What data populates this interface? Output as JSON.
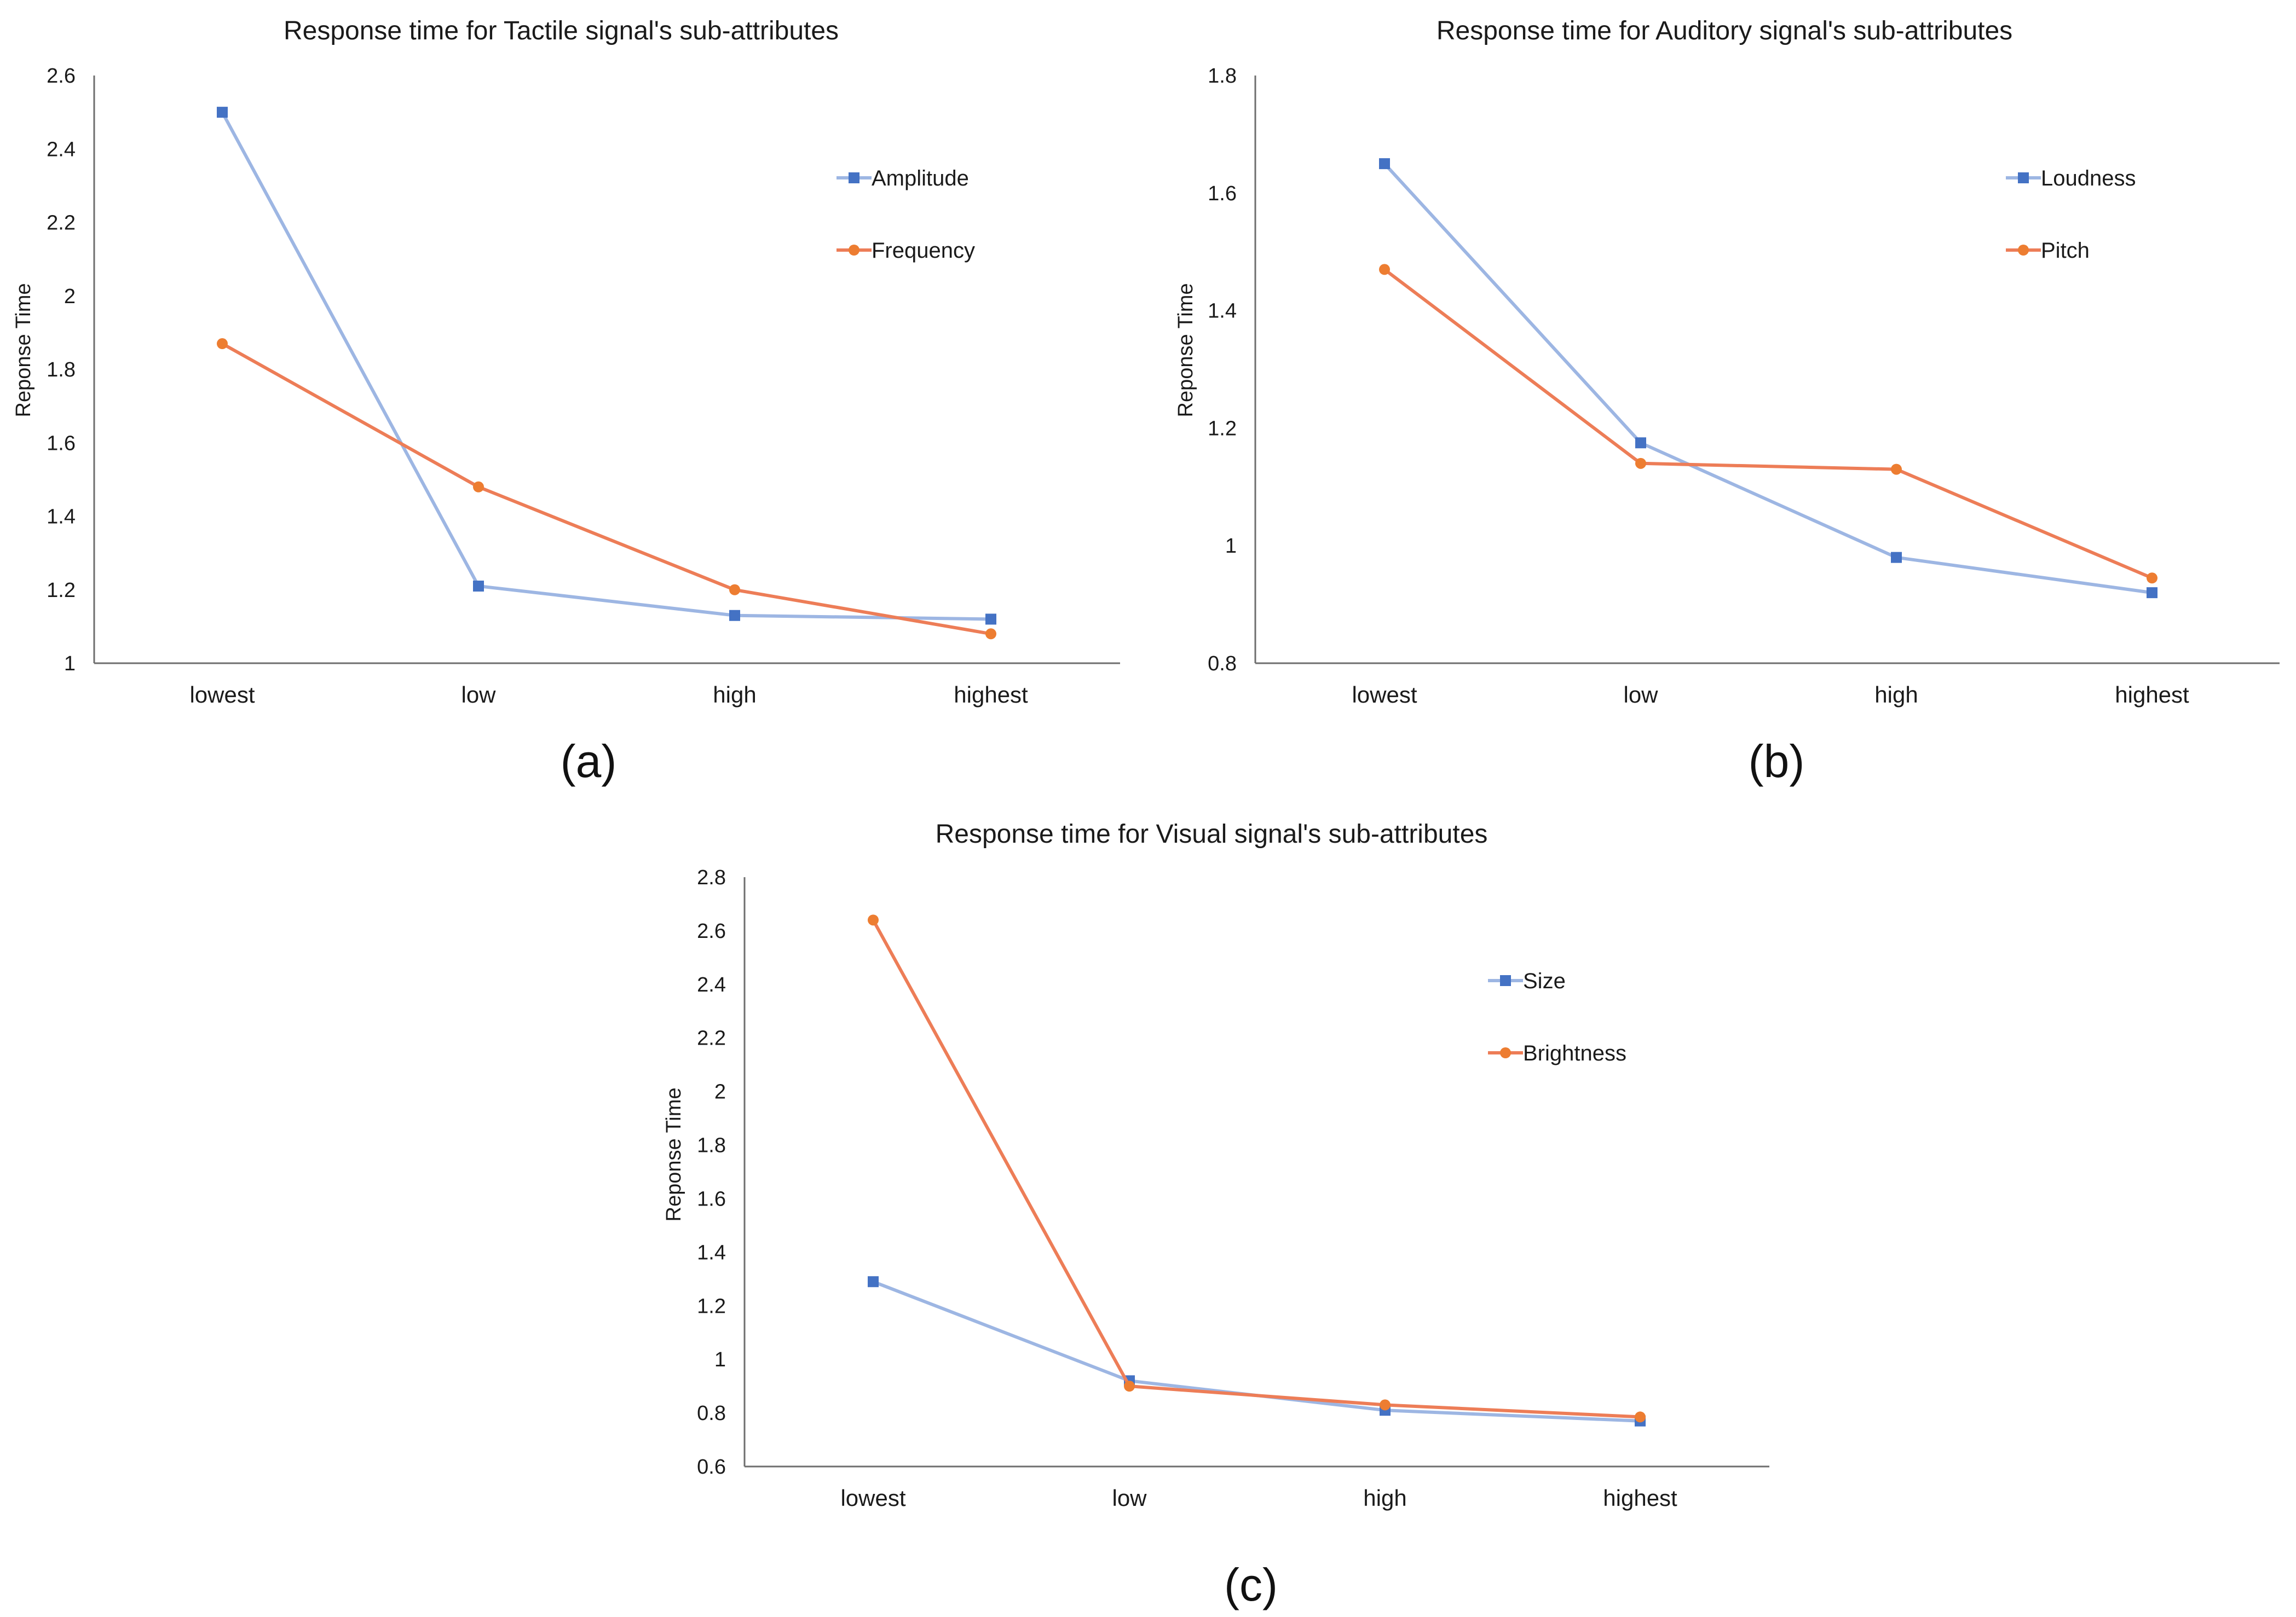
{
  "colors": {
    "series1": "#9DB6E3",
    "series1_marker": "#4472C4",
    "series2": "#ED7D57",
    "series2_marker": "#ED7D31"
  },
  "chart_data": [
    {
      "type": "line",
      "title": "Response time for Tactile signal's sub-attributes",
      "caption": "(a)",
      "xlabel": "",
      "ylabel": "Reponse Time",
      "categories": [
        "lowest",
        "low",
        "high",
        "highest"
      ],
      "ylim": [
        1,
        2.6
      ],
      "yticks": [
        "1",
        "1.2",
        "1.4",
        "1.6",
        "1.8",
        "2",
        "2.2",
        "2.4",
        "2.6"
      ],
      "legend_position": "top-right",
      "series": [
        {
          "name": "Amplitude",
          "marker": "square",
          "values": [
            2.5,
            1.21,
            1.13,
            1.12
          ]
        },
        {
          "name": "Frequency",
          "marker": "circle",
          "values": [
            1.87,
            1.48,
            1.2,
            1.08
          ]
        }
      ]
    },
    {
      "type": "line",
      "title": "Response time for Auditory signal's sub-attributes",
      "caption": "(b)",
      "xlabel": "",
      "ylabel": "Reponse Time",
      "categories": [
        "lowest",
        "low",
        "high",
        "highest"
      ],
      "ylim": [
        0.8,
        1.8
      ],
      "yticks": [
        "0.8",
        "1",
        "1.2",
        "1.4",
        "1.6",
        "1.8"
      ],
      "legend_position": "top-right",
      "series": [
        {
          "name": "Loudness",
          "marker": "square",
          "values": [
            1.65,
            1.175,
            0.98,
            0.92
          ]
        },
        {
          "name": "Pitch",
          "marker": "circle",
          "values": [
            1.47,
            1.14,
            1.13,
            0.945
          ]
        }
      ]
    },
    {
      "type": "line",
      "title": "Response time for Visual signal's sub-attributes",
      "caption": "(c)",
      "xlabel": "",
      "ylabel": "Reponse Time",
      "categories": [
        "lowest",
        "low",
        "high",
        "highest"
      ],
      "ylim": [
        0.6,
        2.8
      ],
      "yticks": [
        "0.6",
        "0.8",
        "1",
        "1.2",
        "1.4",
        "1.6",
        "1.8",
        "2",
        "2.2",
        "2.4",
        "2.6",
        "2.8"
      ],
      "legend_position": "top-right",
      "series": [
        {
          "name": "Size",
          "marker": "square",
          "values": [
            1.29,
            0.92,
            0.81,
            0.77
          ]
        },
        {
          "name": "Brightness",
          "marker": "circle",
          "values": [
            2.64,
            0.9,
            0.83,
            0.785
          ]
        }
      ]
    }
  ]
}
